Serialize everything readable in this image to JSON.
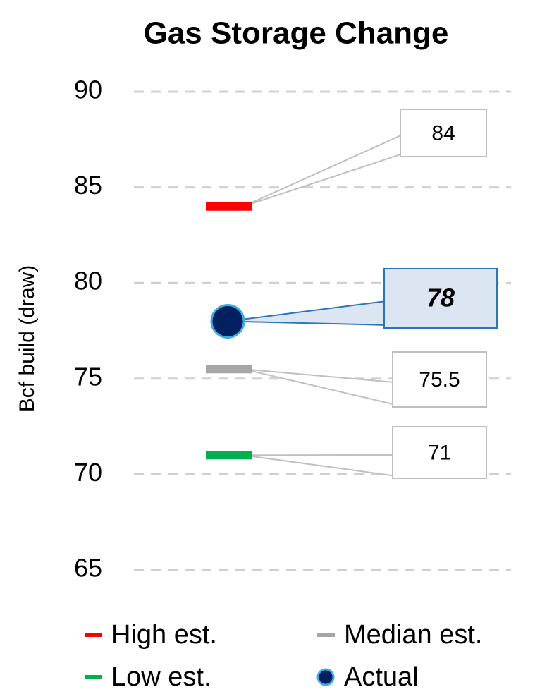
{
  "chart_data": {
    "type": "scatter",
    "title": "Gas Storage Change",
    "y_label": "Bcf build (draw)",
    "ylim": [
      65,
      90
    ],
    "yticks": [
      65,
      70,
      75,
      80,
      85,
      90
    ],
    "grid": true,
    "series": [
      {
        "name": "High est.",
        "color": "#ff0000",
        "marker": "dash",
        "values": [
          84
        ]
      },
      {
        "name": "Median est.",
        "color": "#a6a6a6",
        "marker": "dash",
        "values": [
          75.5
        ]
      },
      {
        "name": "Low est.",
        "color": "#00b050",
        "marker": "dash",
        "values": [
          71
        ]
      },
      {
        "name": "Actual",
        "color": "#002060",
        "marker": "circle",
        "values": [
          78
        ]
      }
    ]
  }
}
